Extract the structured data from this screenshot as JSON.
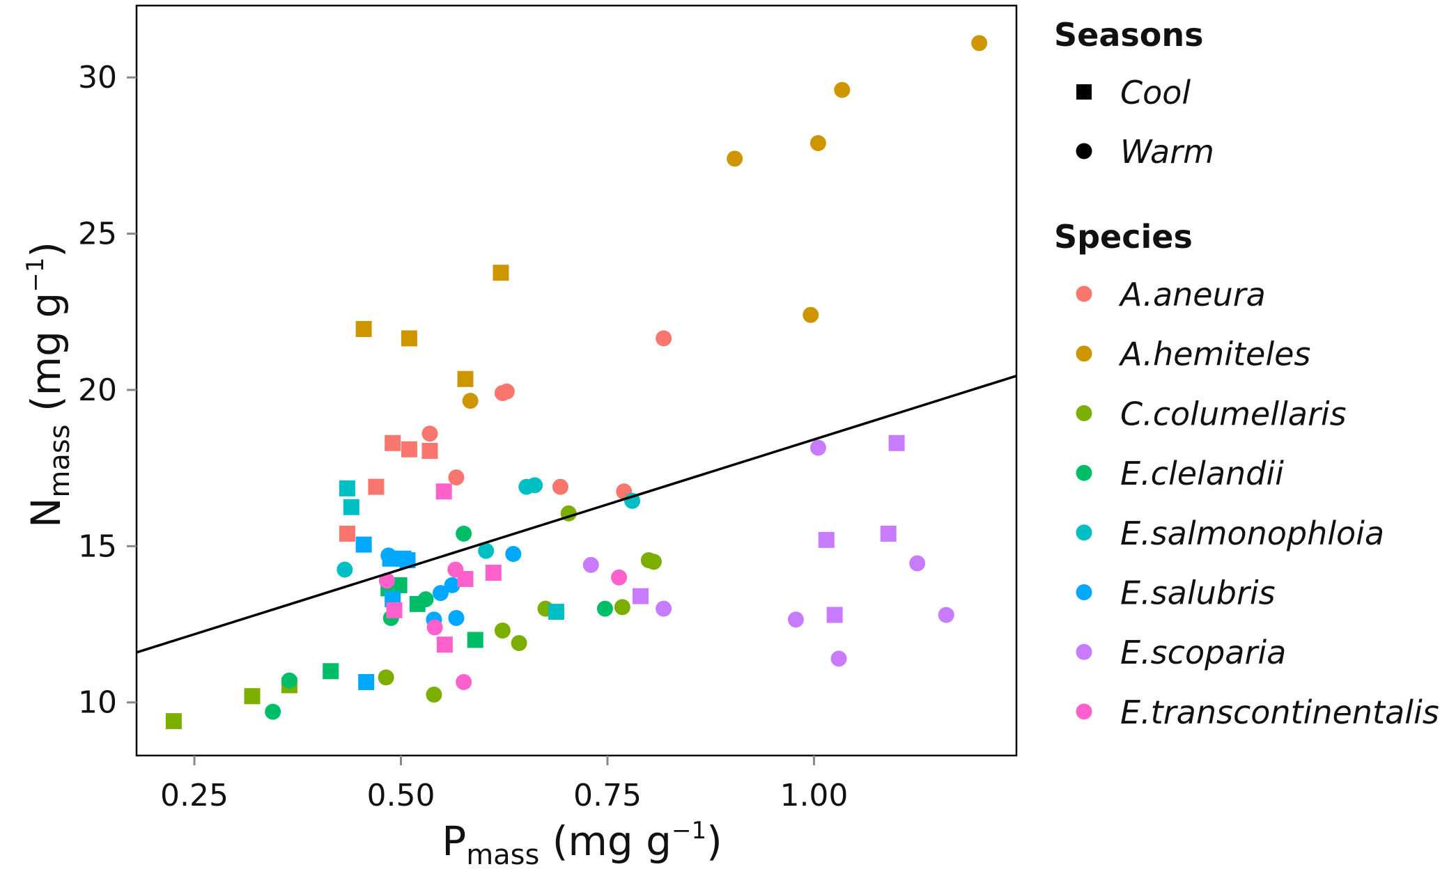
{
  "chart_data": {
    "type": "scatter",
    "title": "",
    "xlabel": {
      "main": "P",
      "sub": "mass",
      "unit_open": " (mg g",
      "sup": "−1",
      "unit_close": ")"
    },
    "ylabel": {
      "main": "N",
      "sub": "mass",
      "unit_open": " (mg g",
      "sup": "−1",
      "unit_close": ")"
    },
    "xlim": [
      0.18,
      1.245
    ],
    "ylim": [
      8.3,
      32.3
    ],
    "x_ticks": [
      0.25,
      0.5,
      0.75,
      1.0
    ],
    "x_tick_labels": [
      "0.25",
      "0.50",
      "0.75",
      "1.00"
    ],
    "y_ticks": [
      10,
      15,
      20,
      25,
      30
    ],
    "y_tick_labels": [
      "10",
      "15",
      "20",
      "25",
      "30"
    ],
    "grid": false,
    "legend_position": "right",
    "legend": {
      "seasons_title": "Seasons",
      "seasons": [
        {
          "name": "Cool",
          "shape": "square"
        },
        {
          "name": "Warm",
          "shape": "circle"
        }
      ],
      "species_title": "Species"
    },
    "regression_line": {
      "x": [
        0.18,
        1.245
      ],
      "y": [
        11.6,
        20.45
      ],
      "color": "#000000"
    },
    "series": [
      {
        "name": "A.aneura",
        "color": "#F8766D",
        "cool": [
          [
            0.47,
            16.9
          ],
          [
            0.435,
            15.4
          ],
          [
            0.49,
            18.3
          ],
          [
            0.51,
            18.1
          ],
          [
            0.535,
            18.05
          ]
        ],
        "warm": [
          [
            0.535,
            18.6
          ],
          [
            0.567,
            17.2
          ],
          [
            0.623,
            19.9
          ],
          [
            0.628,
            19.95
          ],
          [
            0.693,
            16.9
          ],
          [
            0.77,
            16.75
          ],
          [
            0.818,
            21.65
          ]
        ]
      },
      {
        "name": "A.hemiteles",
        "color": "#CD9600",
        "cool": [
          [
            0.455,
            21.95
          ],
          [
            0.51,
            21.65
          ],
          [
            0.578,
            20.35
          ],
          [
            0.621,
            23.75
          ]
        ],
        "warm": [
          [
            0.584,
            19.65
          ],
          [
            0.904,
            27.4
          ],
          [
            0.996,
            22.4
          ],
          [
            1.005,
            27.9
          ],
          [
            1.034,
            29.6
          ],
          [
            1.2,
            31.1
          ]
        ]
      },
      {
        "name": "C.columellaris",
        "color": "#7CAE00",
        "cool": [
          [
            0.225,
            9.4
          ],
          [
            0.32,
            10.2
          ],
          [
            0.365,
            10.55
          ]
        ],
        "warm": [
          [
            0.482,
            10.8
          ],
          [
            0.54,
            10.25
          ],
          [
            0.623,
            12.3
          ],
          [
            0.643,
            11.9
          ],
          [
            0.675,
            13.0
          ],
          [
            0.703,
            16.05
          ],
          [
            0.768,
            13.05
          ],
          [
            0.8,
            14.55
          ],
          [
            0.806,
            14.5
          ]
        ]
      },
      {
        "name": "E.clelandii",
        "color": "#00BE67",
        "cool": [
          [
            0.415,
            11.0
          ],
          [
            0.485,
            13.65
          ],
          [
            0.498,
            13.75
          ],
          [
            0.52,
            13.15
          ],
          [
            0.59,
            12.0
          ]
        ],
        "warm": [
          [
            0.345,
            9.7
          ],
          [
            0.365,
            10.7
          ],
          [
            0.488,
            12.7
          ],
          [
            0.53,
            13.3
          ],
          [
            0.576,
            15.4
          ],
          [
            0.747,
            13.0
          ]
        ]
      },
      {
        "name": "E.salmonophloia",
        "color": "#00BFC4",
        "cool": [
          [
            0.435,
            16.85
          ],
          [
            0.44,
            16.25
          ],
          [
            0.688,
            12.9
          ]
        ],
        "warm": [
          [
            0.432,
            14.25
          ],
          [
            0.603,
            14.85
          ],
          [
            0.652,
            16.9
          ],
          [
            0.662,
            16.95
          ],
          [
            0.78,
            16.45
          ]
        ]
      },
      {
        "name": "E.salubris",
        "color": "#00A9FF",
        "cool": [
          [
            0.455,
            15.05
          ],
          [
            0.458,
            10.65
          ],
          [
            0.487,
            14.6
          ],
          [
            0.49,
            13.3
          ],
          [
            0.503,
            14.6
          ],
          [
            0.508,
            14.55
          ]
        ],
        "warm": [
          [
            0.485,
            14.7
          ],
          [
            0.54,
            12.65
          ],
          [
            0.548,
            13.5
          ],
          [
            0.562,
            13.75
          ],
          [
            0.567,
            12.7
          ],
          [
            0.636,
            14.75
          ]
        ]
      },
      {
        "name": "E.scoparia",
        "color": "#C77CFF",
        "cool": [
          [
            0.79,
            13.4
          ],
          [
            1.015,
            15.2
          ],
          [
            1.025,
            12.8
          ],
          [
            1.09,
            15.4
          ],
          [
            1.1,
            18.3
          ]
        ],
        "warm": [
          [
            0.73,
            14.4
          ],
          [
            0.818,
            13.0
          ],
          [
            0.978,
            12.65
          ],
          [
            1.005,
            18.15
          ],
          [
            1.03,
            11.4
          ],
          [
            1.125,
            14.45
          ],
          [
            1.16,
            12.8
          ]
        ]
      },
      {
        "name": "E.transcontinentalis",
        "color": "#FF61CC",
        "cool": [
          [
            0.492,
            12.95
          ],
          [
            0.552,
            16.75
          ],
          [
            0.553,
            11.85
          ],
          [
            0.578,
            13.95
          ],
          [
            0.612,
            14.15
          ]
        ],
        "warm": [
          [
            0.483,
            13.9
          ],
          [
            0.541,
            12.4
          ],
          [
            0.566,
            14.25
          ],
          [
            0.576,
            10.65
          ],
          [
            0.764,
            14.0
          ]
        ]
      }
    ]
  }
}
